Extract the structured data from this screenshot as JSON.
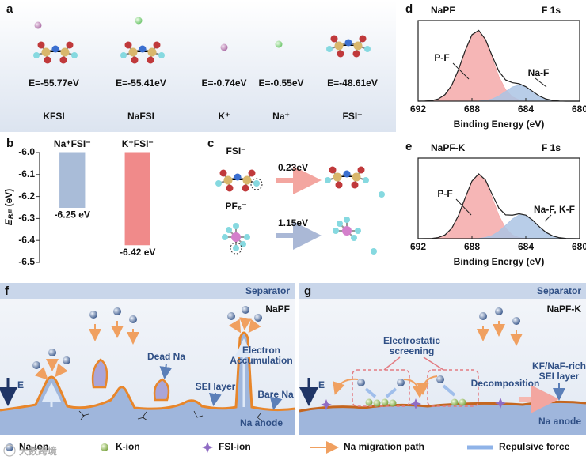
{
  "panel_a": {
    "label": "a",
    "items": [
      {
        "name": "KFSI",
        "energy": "E=-55.77eV"
      },
      {
        "name": "NaFSI",
        "energy": "E=-55.41eV"
      },
      {
        "name": "K⁺",
        "energy": "E=-0.74eV"
      },
      {
        "name": "Na⁺",
        "energy": "E=-0.55eV"
      },
      {
        "name": "FSI⁻",
        "energy": "E=-48.61eV"
      }
    ]
  },
  "panel_c": {
    "label": "c",
    "rows": [
      {
        "species": "FSI⁻",
        "energy": "0.23eV"
      },
      {
        "species": "PF₆⁻",
        "energy": "1.15eV"
      }
    ]
  },
  "chart_data": [
    {
      "type": "bar",
      "label": "b",
      "ylabel": {
        "main": "E",
        "sub": "BE",
        "unit": " (eV)"
      },
      "categories": [
        "Na⁺FSI⁻",
        "K⁺FSI⁻"
      ],
      "values": [
        -6.25,
        -6.42
      ],
      "value_labels": [
        "-6.25 eV",
        "-6.42 eV"
      ],
      "colors": [
        "#a9bcd8",
        "#f08a8a"
      ],
      "ylim": [
        -6.5,
        -6.0
      ],
      "yticks": [
        {
          "value": -6.0,
          "label": "-6.0"
        },
        -6.1,
        -6.2,
        -6.3,
        -6.4,
        -6.5
      ]
    },
    {
      "type": "area",
      "label": "d",
      "title": "NaPF",
      "subtitle": "F 1s",
      "xlabel": "Binding Energy (eV)",
      "x": [
        692,
        691.5,
        691,
        690.5,
        690,
        689.5,
        689,
        688.5,
        688,
        687.5,
        687,
        686.5,
        686,
        685.5,
        685,
        684.5,
        684,
        683.5,
        683,
        682.5,
        682,
        681.5,
        681,
        680.5,
        680
      ],
      "xlim": [
        692,
        680
      ],
      "xticks": [
        692,
        688,
        684,
        680
      ],
      "ylim": [
        0,
        100
      ],
      "series": [
        {
          "name": "P-F",
          "color": "#f4a9a9",
          "values": [
            0,
            0.2,
            0.7,
            2.7,
            8.2,
            19.8,
            39.1,
            62.9,
            82.4,
            87.6,
            75.8,
            53.4,
            30.5,
            14.3,
            5.4,
            1.7,
            0.4,
            0.1,
            0,
            0,
            0,
            0,
            0,
            0,
            0
          ]
        },
        {
          "name": "Na-F",
          "color": "#abc4e4",
          "values": [
            0,
            0,
            0,
            0,
            0,
            0,
            0,
            0,
            0,
            0.2,
            0.9,
            2.7,
            6.5,
            12.1,
            17.6,
            20,
            17.6,
            12.1,
            6.5,
            2.7,
            0.9,
            0.2,
            0,
            0,
            0
          ]
        },
        {
          "color": "#222222",
          "values": [
            0,
            0.2,
            0.7,
            2.7,
            8.2,
            19.8,
            39.1,
            62.9,
            82.4,
            87.8,
            76.7,
            56.1,
            37,
            26.4,
            23,
            21.7,
            18,
            12.2,
            6.5,
            2.7,
            0.9,
            0.2,
            0,
            0,
            0
          ]
        }
      ]
    },
    {
      "type": "area",
      "label": "e",
      "title": "NaPF-K",
      "subtitle": "F 1s",
      "xlabel": "Binding Energy (eV)",
      "x": [
        692,
        691.5,
        691,
        690.5,
        690,
        689.5,
        689,
        688.5,
        688,
        687.5,
        687,
        686.5,
        686,
        685.5,
        685,
        684.5,
        684,
        683.5,
        683,
        682.5,
        682,
        681.5,
        681,
        680.5,
        680
      ],
      "xlim": [
        692,
        680
      ],
      "xticks": [
        692,
        688,
        684,
        680
      ],
      "ylim": [
        0,
        100
      ],
      "series": [
        {
          "name": "P-F",
          "color": "#f4a9a9",
          "values": [
            0,
            0.1,
            0.3,
            1.4,
            4.7,
            13,
            28.8,
            50.8,
            71.4,
            80,
            71.4,
            50.8,
            28.8,
            13,
            4.7,
            1.4,
            0.3,
            0.1,
            0,
            0,
            0,
            0,
            0,
            0,
            0
          ]
        },
        {
          "name": "Na-F, K-F",
          "color": "#abc4e4",
          "values": [
            0,
            0,
            0,
            0,
            0,
            0,
            0,
            0,
            0.1,
            0.4,
            1.5,
            4.1,
            9.1,
            16.5,
            24.5,
            29.5,
            28.9,
            23,
            14.9,
            7.9,
            3.4,
            1.2,
            0.3,
            0.1,
            0
          ]
        },
        {
          "color": "#222222",
          "values": [
            0,
            0.1,
            0.3,
            1.4,
            4.7,
            13,
            28.8,
            50.8,
            71.5,
            80.4,
            72.9,
            54.9,
            37.9,
            29.5,
            29.2,
            30.9,
            29.2,
            23.1,
            14.9,
            7.9,
            3.4,
            1.2,
            0.3,
            0.1,
            0
          ]
        }
      ]
    }
  ],
  "panel_f": {
    "label": "f",
    "separator": "Separator",
    "electrolyte": "NaPF",
    "dead": "Dead Na",
    "accumulation": [
      "Electron",
      "Accumulation"
    ],
    "sei": "SEI layer",
    "bare": "Bare Na",
    "anode": "Na anode",
    "field": "E"
  },
  "panel_g": {
    "label": "g",
    "separator": "Separator",
    "electrolyte": "NaPF-K",
    "screening": [
      "Electrostatic",
      "screening"
    ],
    "decomposition": "Decomposition",
    "sei": [
      "KF/NaF-rich",
      "SEI layer"
    ],
    "anode": "Na anode",
    "field": "E"
  },
  "legend": [
    "Na-ion",
    "K-ion",
    "FSI-ion",
    "Na migration path",
    "Repulsive force"
  ],
  "watermark": "大数跨境"
}
